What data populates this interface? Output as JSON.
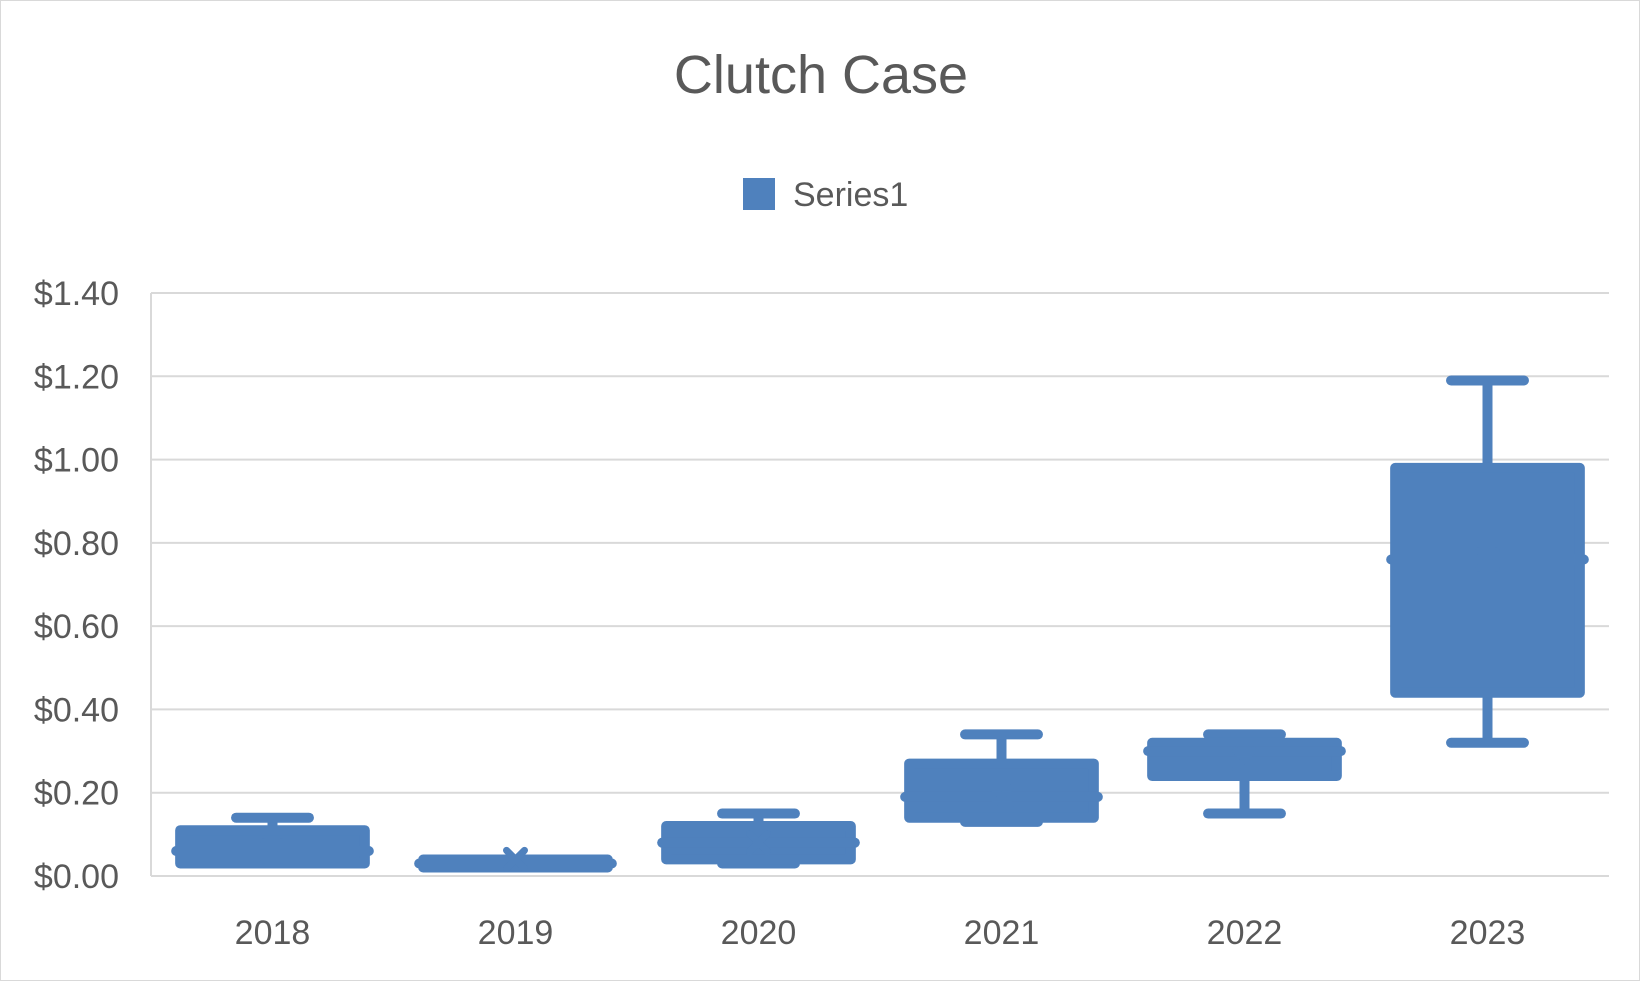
{
  "chart_data": {
    "type": "box",
    "title": "Clutch Case",
    "xlabel": "",
    "ylabel": "",
    "ylim": [
      0,
      1.4
    ],
    "y_ticks": [
      0,
      0.2,
      0.4,
      0.6,
      0.8,
      1.0,
      1.2,
      1.4
    ],
    "y_tick_labels": [
      "$0.00",
      "$0.20",
      "$0.40",
      "$0.60",
      "$0.80",
      "$1.00",
      "$1.20",
      "$1.40"
    ],
    "grid": true,
    "legend": {
      "position": "top",
      "entries": [
        "Series1"
      ]
    },
    "color": "#4f81bd",
    "categories": [
      "2018",
      "2019",
      "2020",
      "2021",
      "2022",
      "2023"
    ],
    "series": [
      {
        "name": "Series1",
        "boxes": [
          {
            "category": "2018",
            "min": 0.03,
            "q1": 0.03,
            "median": 0.06,
            "q3": 0.11,
            "max": 0.14,
            "mean": 0.06
          },
          {
            "category": "2019",
            "min": 0.03,
            "q1": 0.03,
            "median": 0.03,
            "q3": 0.03,
            "max": 0.03,
            "mean": 0.04
          },
          {
            "category": "2020",
            "min": 0.03,
            "q1": 0.04,
            "median": 0.08,
            "q3": 0.12,
            "max": 0.15,
            "mean": 0.08
          },
          {
            "category": "2021",
            "min": 0.13,
            "q1": 0.14,
            "median": 0.19,
            "q3": 0.27,
            "max": 0.34,
            "mean": 0.19
          },
          {
            "category": "2022",
            "min": 0.15,
            "q1": 0.24,
            "median": 0.3,
            "q3": 0.32,
            "max": 0.34,
            "mean": 0.28
          },
          {
            "category": "2023",
            "min": 0.32,
            "q1": 0.44,
            "median": 0.76,
            "q3": 0.98,
            "max": 1.19,
            "mean": 0.76
          }
        ]
      }
    ]
  }
}
